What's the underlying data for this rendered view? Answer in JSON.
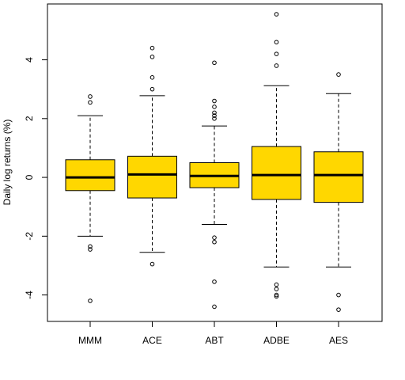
{
  "chart_data": {
    "type": "boxplot",
    "title": "",
    "xlabel": "",
    "ylabel": "Daily log returns (%)",
    "ylim": [
      -4.9,
      5.9
    ],
    "yticks": [
      -4,
      -2,
      0,
      2,
      4
    ],
    "ytick_labels": [
      "-4",
      "-2",
      "0",
      "2",
      "4"
    ],
    "categories": [
      "MMM",
      "ACE",
      "ABT",
      "ADBE",
      "AES"
    ],
    "box_color": "#FFD700",
    "boxes": [
      {
        "name": "MMM",
        "q1": -0.45,
        "median": 0.0,
        "q3": 0.6,
        "whisker_low": -2.0,
        "whisker_high": 2.1,
        "outliers": [
          2.75,
          2.55,
          -2.35,
          -2.45,
          -4.2
        ]
      },
      {
        "name": "ACE",
        "q1": -0.7,
        "median": 0.1,
        "q3": 0.72,
        "whisker_low": -2.55,
        "whisker_high": 2.78,
        "outliers": [
          4.4,
          4.1,
          3.4,
          3.0,
          -2.95
        ]
      },
      {
        "name": "ABT",
        "q1": -0.35,
        "median": 0.05,
        "q3": 0.5,
        "whisker_low": -1.6,
        "whisker_high": 1.75,
        "outliers": [
          3.9,
          2.6,
          2.4,
          2.2,
          2.1,
          2.0,
          -2.05,
          -2.2,
          -3.55,
          -4.4
        ]
      },
      {
        "name": "ADBE",
        "q1": -0.75,
        "median": 0.08,
        "q3": 1.05,
        "whisker_low": -3.05,
        "whisker_high": 3.12,
        "outliers": [
          5.55,
          4.6,
          4.2,
          3.8,
          -3.65,
          -3.8,
          -4.0,
          -4.05
        ]
      },
      {
        "name": "AES",
        "q1": -0.85,
        "median": 0.08,
        "q3": 0.87,
        "whisker_low": -3.05,
        "whisker_high": 2.85,
        "outliers": [
          3.5,
          -4.0,
          -4.5
        ]
      }
    ]
  }
}
